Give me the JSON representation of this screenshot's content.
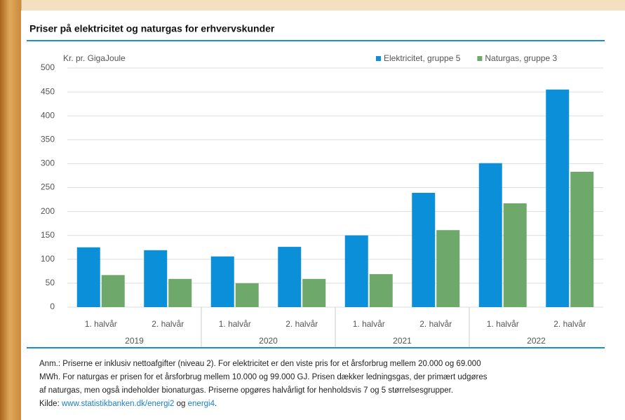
{
  "chart_data": {
    "type": "bar",
    "title": "Priser på elektricitet og naturgas for erhvervskunder",
    "y_label": "Kr. pr. GigaJoule",
    "categories": [
      "1. halvår",
      "2. halvår",
      "1. halvår",
      "2. halvår",
      "1. halvår",
      "2. halvår",
      "1. halvår",
      "2. halvår"
    ],
    "groups": [
      "2019",
      "2020",
      "2021",
      "2022"
    ],
    "series": [
      {
        "name": "Elektricitet, gruppe 5",
        "color": "#0b8fd8",
        "values": [
          125,
          119,
          106,
          126,
          150,
          239,
          301,
          455
        ]
      },
      {
        "name": "Naturgas, gruppe 3",
        "color": "#6fa86b",
        "values": [
          67,
          59,
          50,
          59,
          69,
          161,
          217,
          283
        ]
      }
    ],
    "ylim": [
      0,
      500
    ],
    "yticks": [
      0,
      50,
      100,
      150,
      200,
      250,
      300,
      350,
      400,
      450,
      500
    ],
    "grid": true,
    "legend": "top-right"
  },
  "notes": {
    "lines": [
      "Anm.: Priserne er inklusiv nettoafgifter (niveau 2). For elektricitet er den viste pris for et årsforbrug mellem 20.000 og 69.000",
      "MWh. For naturgas er prisen for et årsforbrug mellem 10.000 og 99.000 GJ. Prisen dækker ledningsgas, der primært udgøres",
      "af naturgas, men også indeholder bionaturgas. Priserne opgøres halvårligt for henholdsvis 7 og 5 størrelsesgrupper."
    ],
    "source_prefix": "Kilde:",
    "link1": "www.statistikbanken.dk/energi2",
    "joiner": "og",
    "link2": "energi4",
    "end": "."
  }
}
